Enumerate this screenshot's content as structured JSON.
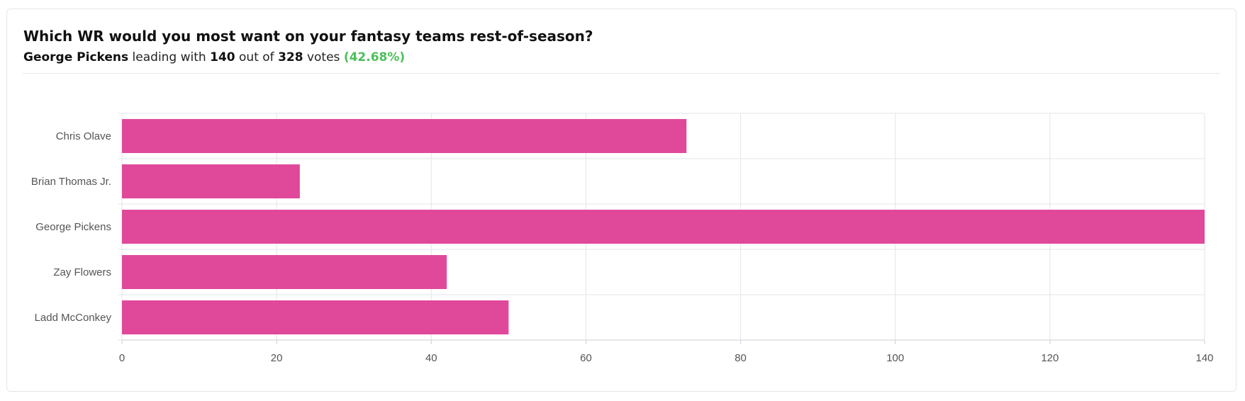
{
  "poll": {
    "question": "Which WR would you most want on your fantasy teams rest-of-season?",
    "leader": "George Pickens",
    "leading_text": "leading with",
    "leader_votes": "140",
    "out_of_text": "out of",
    "total_votes": "328",
    "votes_text": "votes",
    "leader_pct": "(42.68%)"
  },
  "chart_data": {
    "type": "bar",
    "orientation": "horizontal",
    "categories": [
      "Chris Olave",
      "Brian Thomas Jr.",
      "George Pickens",
      "Zay Flowers",
      "Ladd McConkey"
    ],
    "values": [
      73,
      23,
      140,
      42,
      50
    ],
    "xlim": [
      0,
      140
    ],
    "xticks": [
      0,
      20,
      40,
      60,
      80,
      100,
      120,
      140
    ],
    "grid": true,
    "bar_color": "#e0499a"
  },
  "colors": {
    "bar": "#e0499a",
    "grid": "#e4e4ea",
    "accent_green": "#4cbf5a"
  }
}
